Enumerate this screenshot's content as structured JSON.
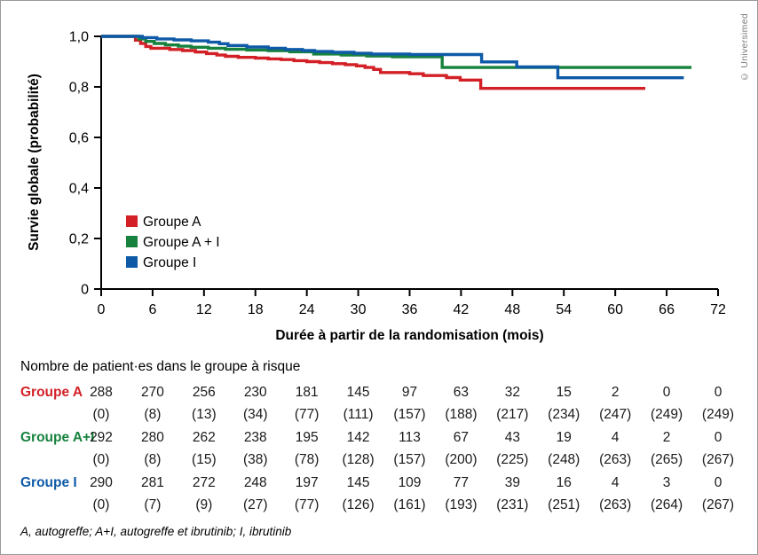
{
  "copyright": "© Universimed",
  "colors": {
    "red": "#d32026",
    "green": "#17823e",
    "blue": "#0e5aa7",
    "axis": "#000000",
    "copyright_gray": "#7c7c7c"
  },
  "chart_data": {
    "type": "line",
    "subtype": "kaplan-meier-step",
    "title": "",
    "xlabel": "Durée à partir de la randomisation (mois)",
    "ylabel": "Survie globale (probabilité)",
    "xlim": [
      0,
      72
    ],
    "ylim": [
      0,
      1.0
    ],
    "xticks": [
      0,
      6,
      12,
      18,
      24,
      30,
      36,
      42,
      48,
      54,
      60,
      66,
      72
    ],
    "yticks": [
      0,
      0.2,
      0.4,
      0.6,
      0.8,
      1.0
    ],
    "ytick_labels": [
      "0",
      "0,2",
      "0,4",
      "0,6",
      "0,8",
      "1,0"
    ],
    "grid": false,
    "legend_position": "inside-lower-left",
    "series": [
      {
        "name": "Groupe A",
        "color_key": "red",
        "steps": [
          [
            0,
            1.0
          ],
          [
            4.0,
            0.985
          ],
          [
            4.6,
            0.972
          ],
          [
            5.2,
            0.96
          ],
          [
            5.8,
            0.953
          ],
          [
            8,
            0.948
          ],
          [
            9.5,
            0.944
          ],
          [
            11,
            0.938
          ],
          [
            12.3,
            0.932
          ],
          [
            13.5,
            0.926
          ],
          [
            14.5,
            0.921
          ],
          [
            16,
            0.917
          ],
          [
            18,
            0.914
          ],
          [
            19.5,
            0.911
          ],
          [
            21,
            0.908
          ],
          [
            22.5,
            0.904
          ],
          [
            24,
            0.9
          ],
          [
            25.5,
            0.896
          ],
          [
            27,
            0.892
          ],
          [
            28.5,
            0.888
          ],
          [
            29.8,
            0.883
          ],
          [
            30.8,
            0.877
          ],
          [
            31.8,
            0.869
          ],
          [
            32.6,
            0.857
          ],
          [
            36,
            0.852
          ],
          [
            37.6,
            0.845
          ],
          [
            40.3,
            0.837
          ],
          [
            41.9,
            0.827
          ],
          [
            44.3,
            0.794
          ],
          [
            63.5,
            0.794
          ]
        ]
      },
      {
        "name": "Groupe A + I",
        "color_key": "green",
        "steps": [
          [
            0,
            1.0
          ],
          [
            4.4,
            0.99
          ],
          [
            5.2,
            0.98
          ],
          [
            6.2,
            0.972
          ],
          [
            7.5,
            0.966
          ],
          [
            9,
            0.961
          ],
          [
            10.5,
            0.957
          ],
          [
            12.5,
            0.953
          ],
          [
            14.5,
            0.949
          ],
          [
            17,
            0.946
          ],
          [
            19.5,
            0.943
          ],
          [
            22,
            0.939
          ],
          [
            24.8,
            0.93
          ],
          [
            28,
            0.926
          ],
          [
            31,
            0.922
          ],
          [
            34,
            0.919
          ],
          [
            39.8,
            0.877
          ],
          [
            68.9,
            0.877
          ]
        ]
      },
      {
        "name": "Groupe I",
        "color_key": "blue",
        "steps": [
          [
            0,
            1.0
          ],
          [
            4.8,
            0.995
          ],
          [
            6.5,
            0.99
          ],
          [
            8.5,
            0.986
          ],
          [
            10.5,
            0.982
          ],
          [
            12.5,
            0.977
          ],
          [
            13.8,
            0.971
          ],
          [
            14.8,
            0.964
          ],
          [
            17,
            0.958
          ],
          [
            19.5,
            0.953
          ],
          [
            21.5,
            0.948
          ],
          [
            23.5,
            0.944
          ],
          [
            24.9,
            0.94
          ],
          [
            27,
            0.937
          ],
          [
            29.5,
            0.933
          ],
          [
            31.5,
            0.93
          ],
          [
            36,
            0.928
          ],
          [
            44.4,
            0.899
          ],
          [
            48.5,
            0.879
          ],
          [
            53.3,
            0.836
          ],
          [
            68.0,
            0.836
          ]
        ]
      }
    ]
  },
  "risk_table": {
    "title": "Nombre de patient·es dans le groupe à risque",
    "columns_months": [
      0,
      6,
      12,
      18,
      24,
      30,
      36,
      42,
      48,
      54,
      60,
      66,
      72
    ],
    "rows": [
      {
        "label": "Groupe A",
        "color_key": "red",
        "at_risk": [
          288,
          270,
          256,
          230,
          181,
          145,
          97,
          63,
          32,
          15,
          2,
          0,
          0
        ],
        "censored": [
          0,
          8,
          13,
          34,
          77,
          111,
          157,
          188,
          217,
          234,
          247,
          249,
          249
        ]
      },
      {
        "label": "Groupe A+I",
        "color_key": "green",
        "at_risk": [
          292,
          280,
          262,
          238,
          195,
          142,
          113,
          67,
          43,
          19,
          4,
          2,
          0
        ],
        "censored": [
          0,
          8,
          15,
          38,
          78,
          128,
          157,
          200,
          225,
          248,
          263,
          265,
          267
        ]
      },
      {
        "label": "Groupe I",
        "color_key": "blue",
        "at_risk": [
          290,
          281,
          272,
          248,
          197,
          145,
          109,
          77,
          39,
          16,
          4,
          3,
          0
        ],
        "censored": [
          0,
          7,
          9,
          27,
          77,
          126,
          161,
          193,
          231,
          251,
          263,
          264,
          267
        ]
      }
    ]
  },
  "footnote": "A, autogreffe; A+I, autogreffe et ibrutinib; I, ibrutinib"
}
